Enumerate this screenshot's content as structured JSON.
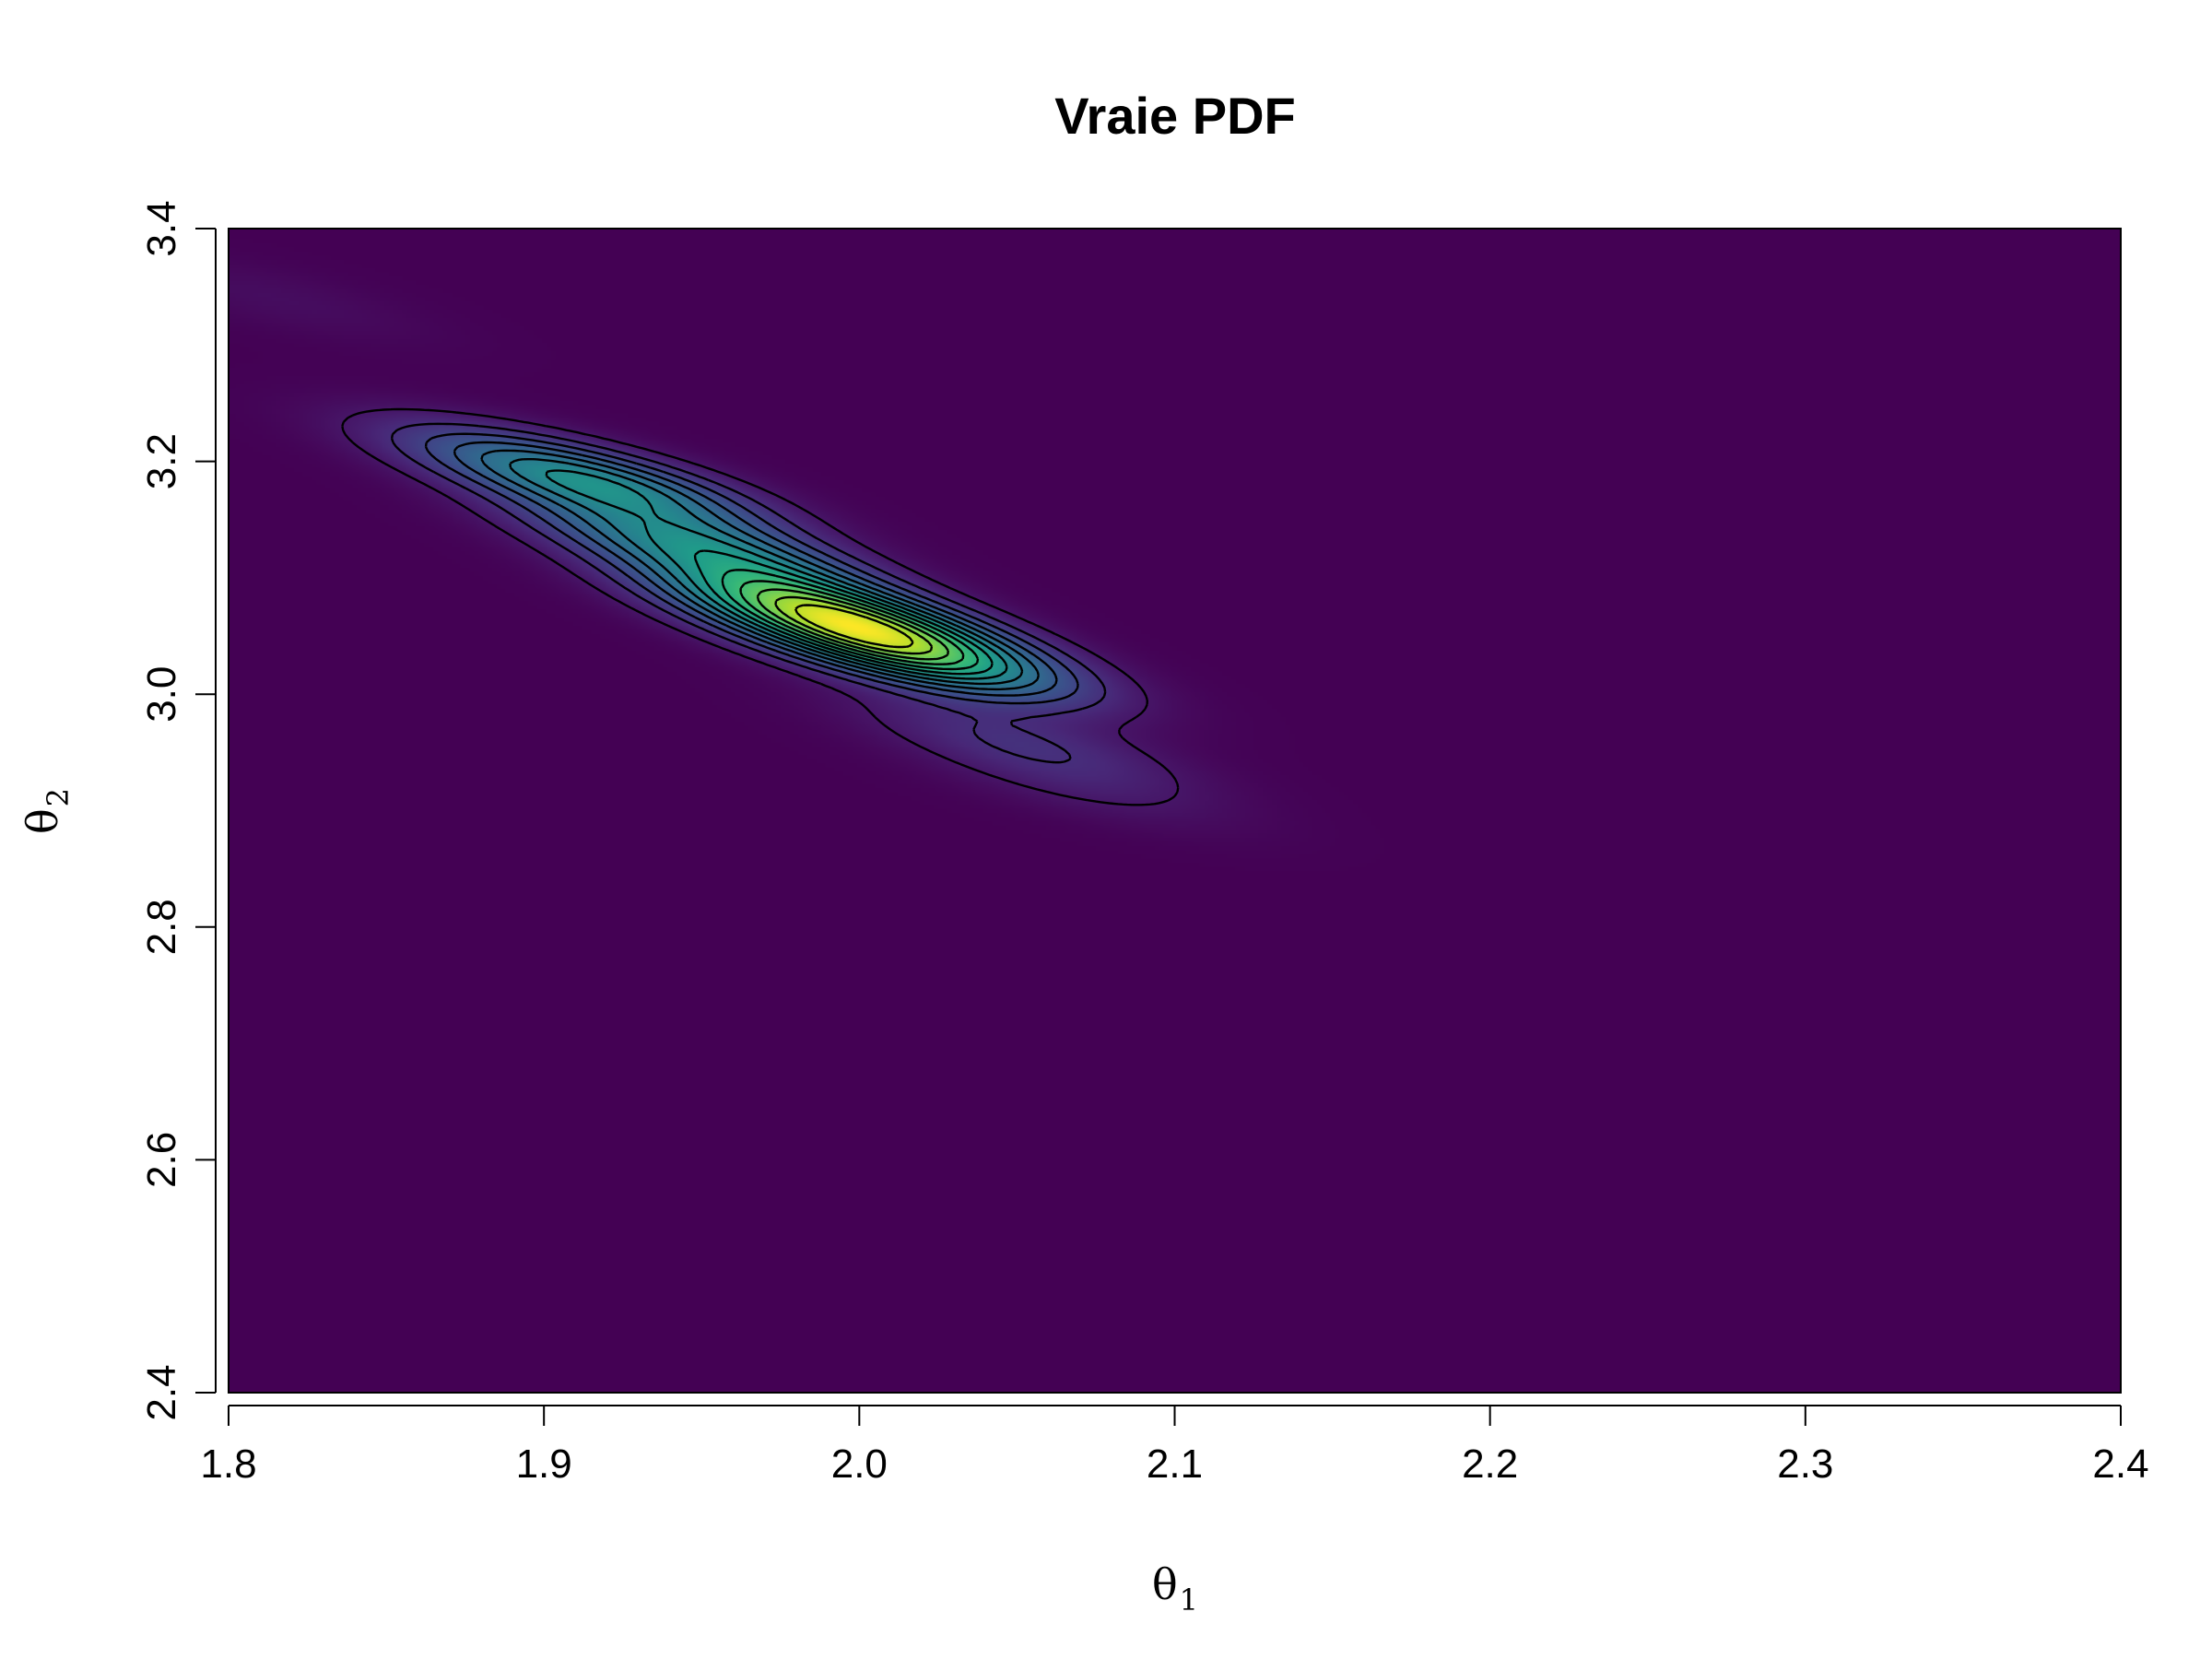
{
  "chart_data": {
    "type": "heatmap",
    "title": "Vraie PDF",
    "xlabel": "θ",
    "xlabel_sub": "1",
    "ylabel": "θ",
    "ylabel_sub": "2",
    "xlim": [
      1.8,
      2.4
    ],
    "ylim": [
      2.4,
      3.4
    ],
    "x_ticks": [
      1.8,
      1.9,
      2.0,
      2.1,
      2.2,
      2.3,
      2.4
    ],
    "x_tick_labels": [
      "1.8",
      "1.9",
      "2.0",
      "2.1",
      "2.2",
      "2.3",
      "2.4"
    ],
    "y_ticks": [
      2.4,
      2.6,
      2.8,
      3.0,
      3.2,
      3.4
    ],
    "y_tick_labels": [
      "2.4",
      "2.6",
      "2.8",
      "3.0",
      "3.2",
      "3.4"
    ],
    "colormap": "viridis",
    "background_color": "#440154",
    "contour_color": "#000000",
    "grid": false,
    "legend": "none",
    "density_modes": [
      {
        "x": 1.99,
        "y": 3.07,
        "peak": 1.0
      },
      {
        "x": 2.015,
        "y": 3.035,
        "peak": 0.8
      },
      {
        "x": 1.95,
        "y": 3.125,
        "peak": 0.62
      },
      {
        "x": 1.917,
        "y": 3.18,
        "peak": 0.55
      },
      {
        "x": 1.895,
        "y": 3.2,
        "peak": 0.2
      },
      {
        "x": 2.05,
        "y": 2.96,
        "peak": 0.18
      },
      {
        "x": 2.07,
        "y": 2.92,
        "peak": 0.08
      },
      {
        "x": 1.815,
        "y": 3.34,
        "peak": 0.05
      }
    ],
    "contour_levels": [
      0.06,
      0.13,
      0.2,
      0.27,
      0.34,
      0.41,
      0.48,
      0.55,
      0.62,
      0.69,
      0.76,
      0.83,
      0.9
    ]
  }
}
